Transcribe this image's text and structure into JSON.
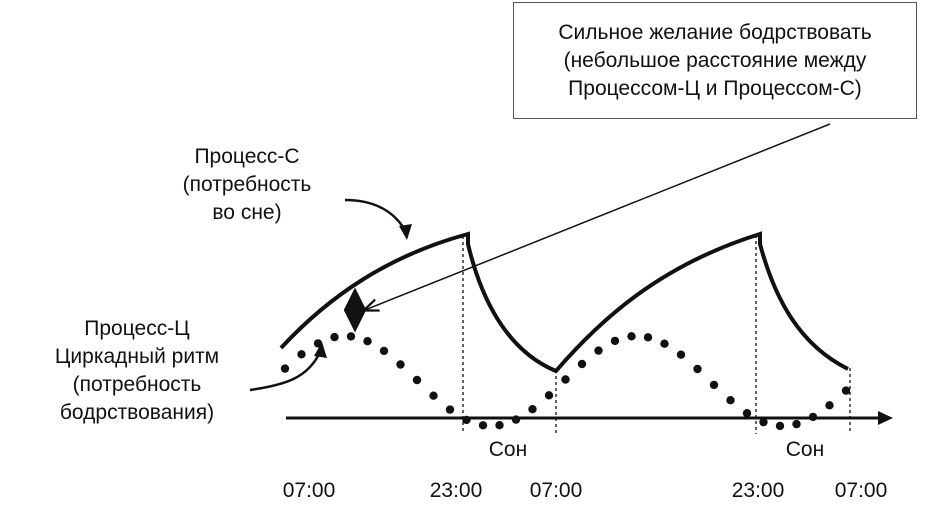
{
  "callout": {
    "lines": [
      "Сильное желание бодрствовать",
      "(небольшое расстояние между",
      "Процессом-Ц и Процессом-С)"
    ]
  },
  "process_s": {
    "lines": [
      "Процесс-С",
      "(потребность",
      "во сне)"
    ]
  },
  "process_c": {
    "lines": [
      "Процесс-Ц",
      "Циркадный ритм",
      "(потребность",
      "бодрствования)"
    ]
  },
  "sleep_labels": [
    "Сон",
    "Сон"
  ],
  "time_labels": [
    "07:00",
    "23:00",
    "07:00",
    "23:00",
    "07:00"
  ],
  "colors": {
    "ink": "#111111",
    "box_border": "#555555"
  },
  "icons": {
    "axis_arrow": "arrow-right-icon",
    "gap_marker": "double-arrow-vertical-icon"
  }
}
